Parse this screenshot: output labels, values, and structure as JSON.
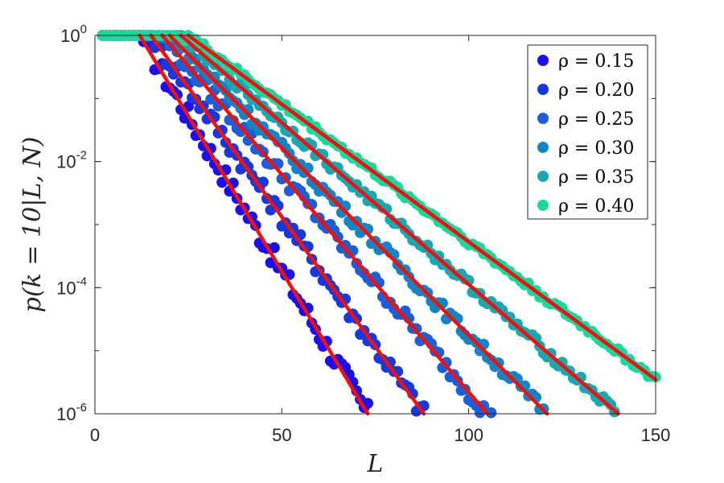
{
  "chart_data": {
    "type": "scatter",
    "xlabel": "L",
    "ylabel": "p(k = 10|L, N)",
    "xlim": [
      0,
      150
    ],
    "ylim": [
      1e-06,
      1
    ],
    "yscale": "log",
    "x_ticks": [
      "0",
      "50",
      "100",
      "150"
    ],
    "y_ticks": [
      {
        "value": 1,
        "base": "10",
        "exp": "0"
      },
      {
        "value": 0.01,
        "base": "10",
        "exp": "-2"
      },
      {
        "value": 0.0001,
        "base": "10",
        "exp": "-4"
      },
      {
        "value": 1e-06,
        "base": "10",
        "exp": "-6"
      }
    ],
    "legend_position": "top-right",
    "fit_line_color": "#ee1111",
    "series": [
      {
        "name": "ρ = 0.15",
        "color": "#1a0ff0",
        "plateau_end": 11,
        "fit": [
          [
            12,
            1.0
          ],
          [
            73,
            1e-06
          ]
        ],
        "last_x": 76
      },
      {
        "name": "ρ = 0.20",
        "color": "#1638e0",
        "plateau_end": 13,
        "fit": [
          [
            15,
            1.0
          ],
          [
            88,
            1e-06
          ]
        ],
        "last_x": 89
      },
      {
        "name": "ρ = 0.25",
        "color": "#1a5fd8",
        "plateau_end": 15,
        "fit": [
          [
            18,
            1.0
          ],
          [
            105,
            1e-06
          ]
        ],
        "last_x": 107
      },
      {
        "name": "ρ = 0.30",
        "color": "#1584c4",
        "plateau_end": 17,
        "fit": [
          [
            20,
            1.0
          ],
          [
            121,
            1e-06
          ]
        ],
        "last_x": 121
      },
      {
        "name": "ρ = 0.35",
        "color": "#17a8b0",
        "plateau_end": 19,
        "fit": [
          [
            23,
            1.0
          ],
          [
            140,
            1e-06
          ]
        ],
        "last_x": 141
      },
      {
        "name": "ρ = 0.40",
        "color": "#1dd69c",
        "plateau_end": 21,
        "fit": [
          [
            25,
            1.0
          ],
          [
            150,
            3.5e-06
          ]
        ],
        "last_x": 150
      }
    ]
  }
}
